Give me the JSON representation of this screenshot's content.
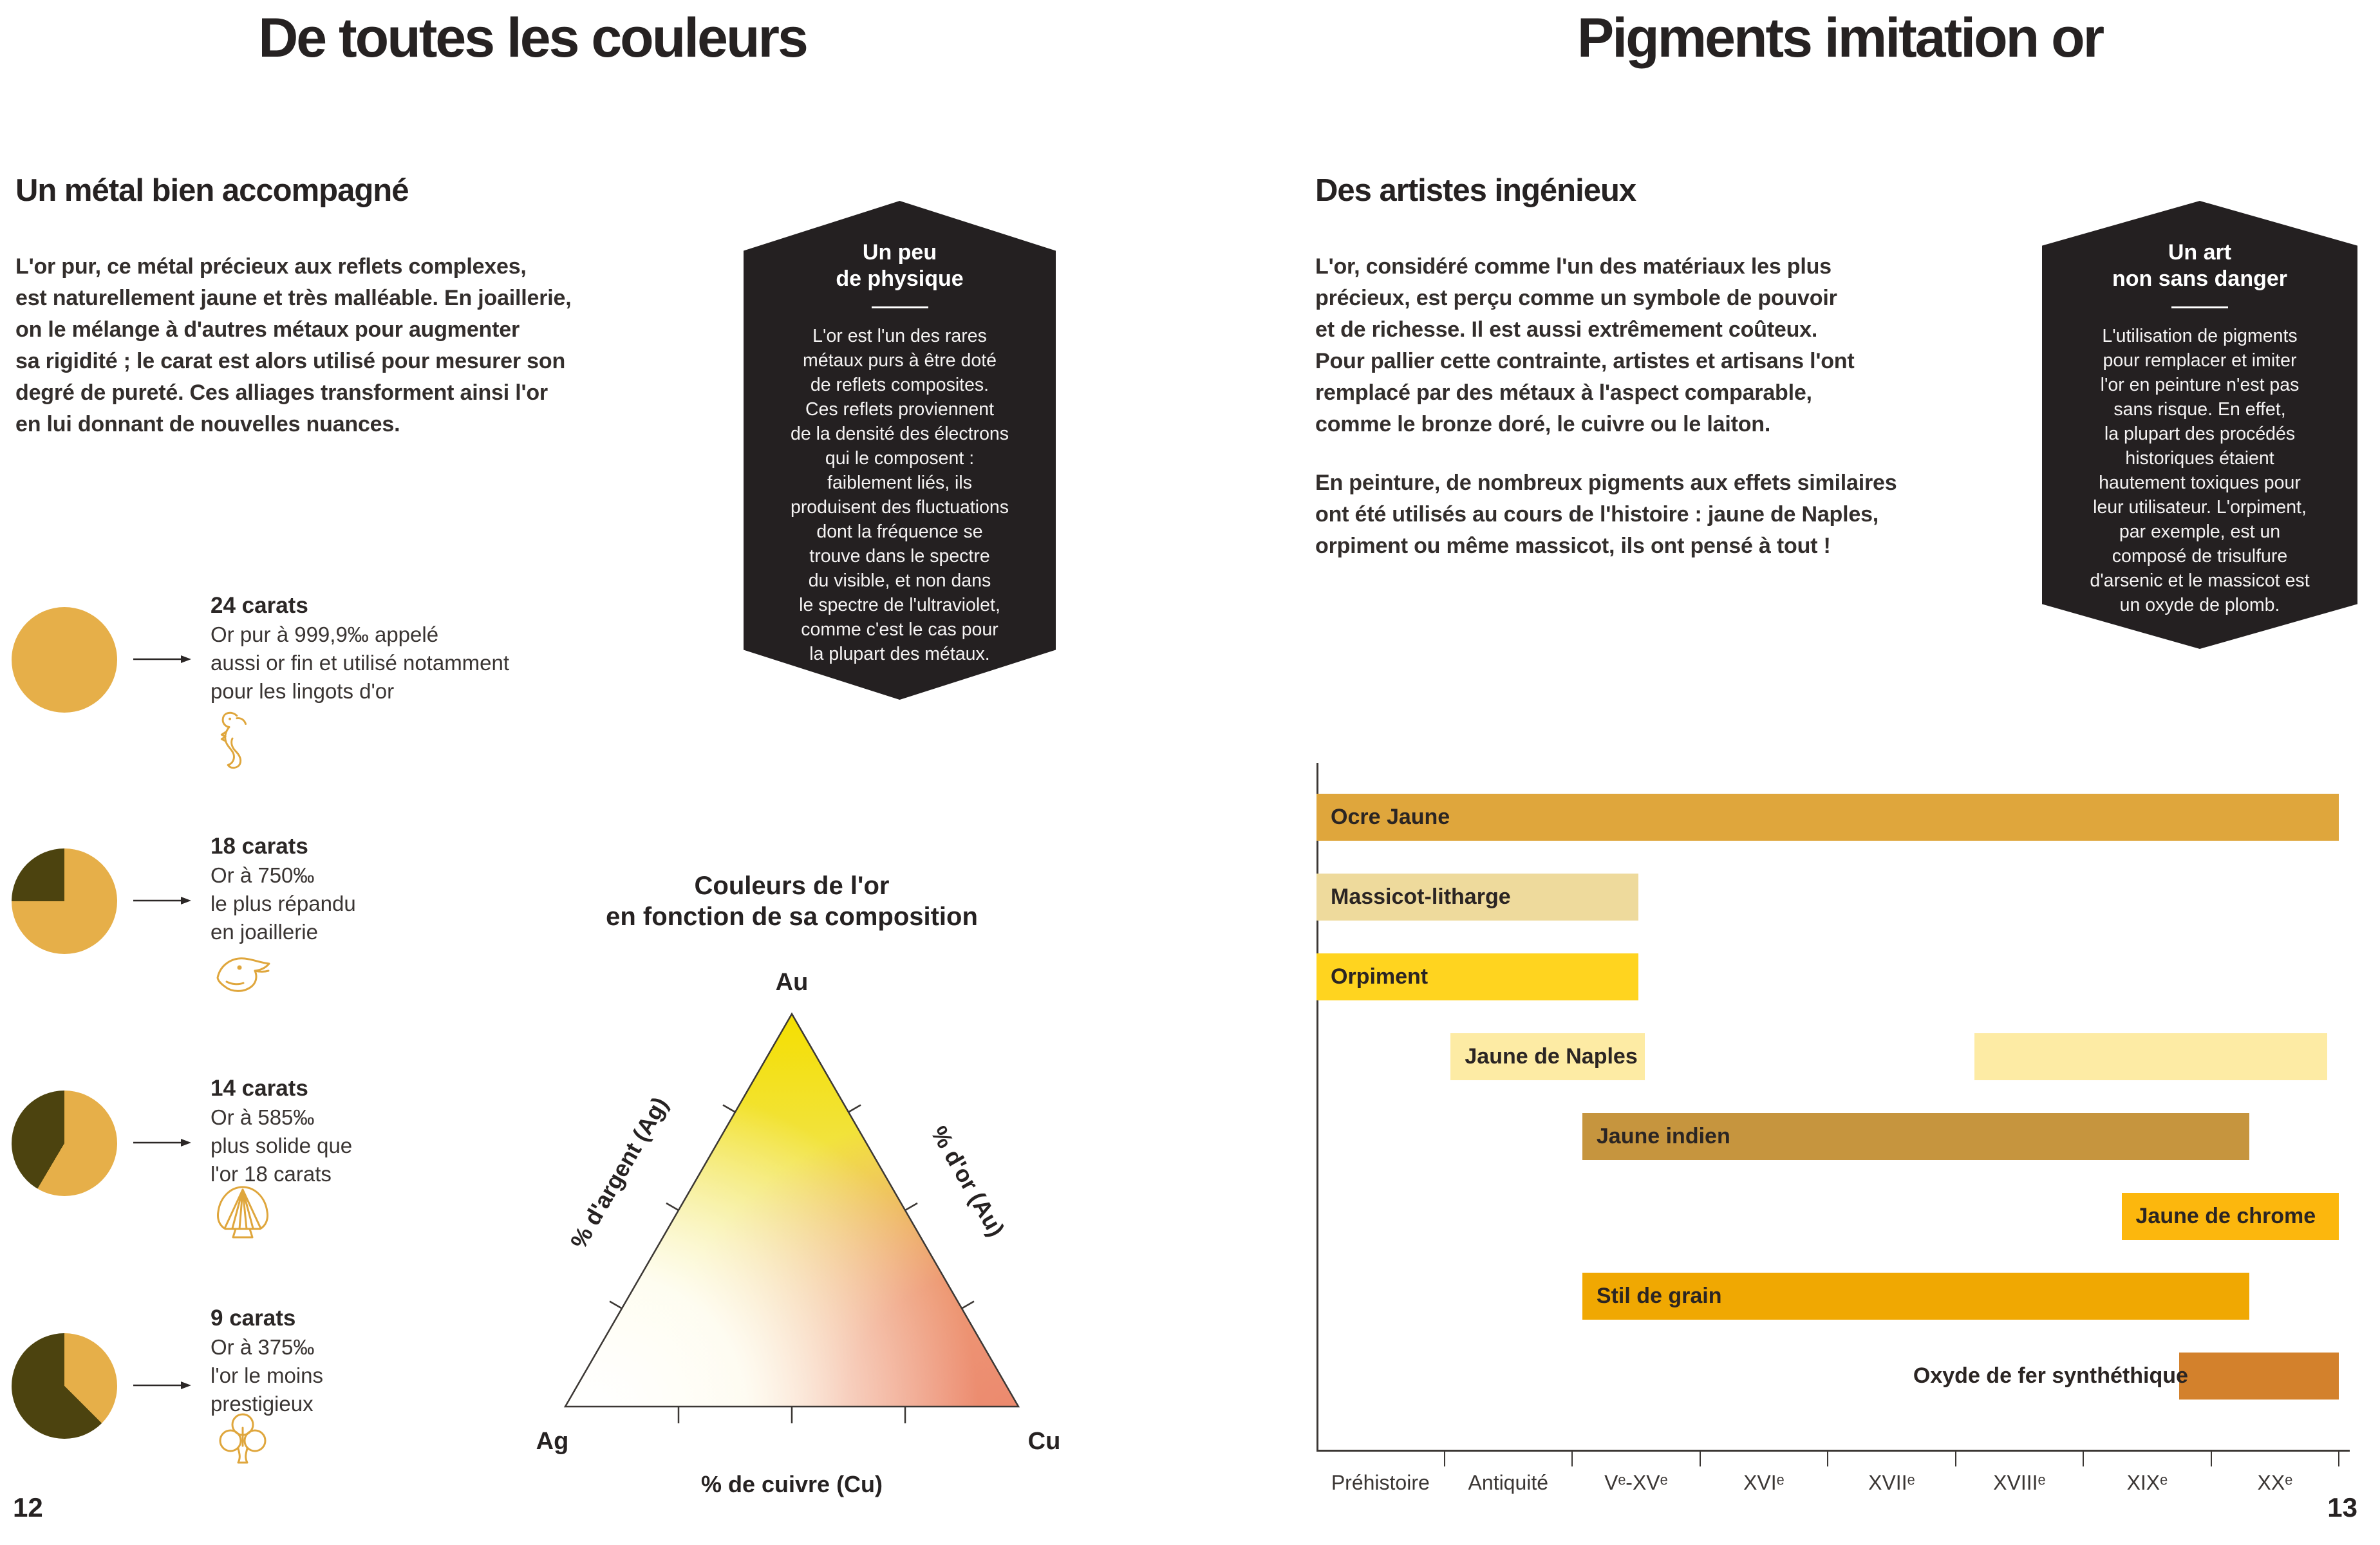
{
  "document": {
    "type": "illustrated-book-spread",
    "language": "fr",
    "topic": "l'or et ses couleurs / pigments imitation or"
  },
  "colors": {
    "pie_gold": "#E6AF49",
    "pie_alloy_dark": "#4C430F",
    "badge_background": "#242021",
    "text": "#2B2726",
    "icon_stroke": "#DFA63C"
  },
  "left_page": {
    "page_number": "12",
    "title": "De toutes les couleurs",
    "section_heading": "Un métal bien accompagné",
    "intro_lines": [
      "L'or pur, ce métal précieux aux reflets complexes,",
      "est naturellement jaune et très malléable. En joaillerie,",
      "on le mélange à d'autres métaux pour augmenter",
      "sa rigidité ; le carat est alors utilisé pour mesurer son",
      "degré de pureté. Ces alliages transforment ainsi l'or",
      "en lui donnant de nouvelles nuances."
    ],
    "physics_badge": {
      "title_lines": [
        "Un peu",
        "de physique"
      ],
      "body_lines": [
        "L'or est l'un des rares",
        "métaux purs à être doté",
        "de reflets composites.",
        "Ces reflets proviennent",
        "de la densité des électrons",
        "qui le composent :",
        "faiblement liés, ils",
        "produisent des fluctuations",
        "dont la fréquence se",
        "trouve dans le spectre",
        "du visible, et non dans",
        "le spectre de l'ultraviolet,",
        "comme c'est le cas pour",
        "la plupart des métaux."
      ]
    },
    "carats": [
      {
        "label": "24 carats",
        "desc_lines": [
          "Or pur à 999,9‰ appelé",
          "aussi or fin et utilisé notamment",
          "pour les lingots d'or"
        ],
        "gold_pct": 100,
        "icon": "seahorse-hallmark-icon"
      },
      {
        "label": "18 carats",
        "desc_lines": [
          "Or à 750‰",
          "le plus répandu",
          "en joaillerie"
        ],
        "gold_pct": 75,
        "icon": "eagle-head-hallmark-icon"
      },
      {
        "label": "14 carats",
        "desc_lines": [
          "Or à 585‰",
          "plus solide que",
          "l'or 18 carats"
        ],
        "gold_pct": 58.5,
        "icon": "shell-hallmark-icon"
      },
      {
        "label": "9 carats",
        "desc_lines": [
          "Or à 375‰",
          "l'or le moins",
          "prestigieux"
        ],
        "gold_pct": 37.5,
        "icon": "clover-hallmark-icon"
      }
    ],
    "ternary": {
      "title_lines": [
        "Couleurs de l'or",
        "en fonction de sa composition"
      ],
      "vertex_labels": {
        "top": "Au",
        "bottom_left": "Ag",
        "bottom_right": "Cu"
      },
      "axis_labels": {
        "left": "% d'argent (Ag)",
        "right": "% d'or (Au)",
        "bottom": "% de cuivre (Cu)"
      }
    }
  },
  "right_page": {
    "page_number": "13",
    "title": "Pigments imitation or",
    "section_heading": "Des artistes ingénieux",
    "para1_lines": [
      "L'or, considéré comme l'un des matériaux les plus",
      "précieux, est perçu comme un symbole de pouvoir",
      "et de richesse. Il est aussi extrêmement coûteux.",
      "Pour pallier cette contrainte, artistes et artisans l'ont",
      "remplacé par des métaux à l'aspect comparable,",
      "comme le bronze doré, le cuivre ou le laiton."
    ],
    "para2_lines": [
      "En peinture, de nombreux pigments aux effets similaires",
      "ont été utilisés au cours de l'histoire : jaune de Naples,",
      "orpiment ou même massicot, ils ont pensé à tout !"
    ],
    "danger_badge": {
      "title_lines": [
        "Un art",
        "non sans danger"
      ],
      "body_lines": [
        "L'utilisation de pigments",
        "pour remplacer et imiter",
        "l'or en peinture n'est pas",
        "sans risque. En effet,",
        "la plupart des procédés",
        "historiques étaient",
        "hautement toxiques pour",
        "leur utilisateur. L'orpiment,",
        "par exemple, est un",
        "composé de trisulfure",
        "d'arsenic et le massicot est",
        "un oxyde de plomb."
      ]
    }
  },
  "chart_data": [
    {
      "type": "bar",
      "variant": "horizontal-timeline",
      "title": "Périodes d'utilisation des pigments imitant l'or",
      "categories": [
        "Préhistoire",
        "Antiquité",
        "Vᵉ-XVᵉ",
        "XVIᵉ",
        "XVIIᵉ",
        "XVIIIᵉ",
        "XIXᵉ",
        "XXᵉ"
      ],
      "x_unit_range": [
        0,
        8
      ],
      "legend_position": "none",
      "grid": false,
      "bars": [
        {
          "label": "Ocre Jaune",
          "segments": [
            [
              0,
              8
            ]
          ],
          "color": "#DFA63C",
          "label_outside": false
        },
        {
          "label": "Massicot-litharge",
          "segments": [
            [
              0,
              2.52
            ]
          ],
          "color": "#EEDA9C",
          "label_outside": false
        },
        {
          "label": "Orpiment",
          "segments": [
            [
              0,
              2.52
            ]
          ],
          "color": "#FFD41F",
          "label_outside": false
        },
        {
          "label": "Jaune de Naples",
          "segments": [
            [
              1.05,
              2.57
            ],
            [
              5.15,
              7.91
            ]
          ],
          "color": "#FDEBA4",
          "label_outside": false
        },
        {
          "label": "Jaune indien",
          "segments": [
            [
              2.08,
              7.3
            ]
          ],
          "color": "#C6953E",
          "label_outside": false
        },
        {
          "label": "Jaune de chrome",
          "segments": [
            [
              6.3,
              8.0
            ]
          ],
          "color": "#FCB70D",
          "label_outside": false
        },
        {
          "label": "Stil de grain",
          "segments": [
            [
              2.08,
              7.3
            ]
          ],
          "color": "#F0A802",
          "label_outside": false
        },
        {
          "label": "Oxyde de fer synthéthique",
          "segments": [
            [
              6.75,
              8.0
            ]
          ],
          "color": "#D3812C",
          "label_outside": true
        }
      ]
    },
    {
      "type": "ternary",
      "title": "Couleurs de l'or en fonction de sa composition",
      "vertices": {
        "top": "Au",
        "bottom_left": "Ag",
        "bottom_right": "Cu"
      },
      "axis_labels": {
        "left_edge": "% d'argent (Ag)",
        "right_edge": "% d'or (Au)",
        "bottom_edge": "% de cuivre (Cu)"
      },
      "ticks_per_edge": 3,
      "color_field": {
        "near_Au": "#F4DF00",
        "near_Ag": "#FFFFFF",
        "near_Cu": "#EC8A6E"
      }
    },
    {
      "type": "pie",
      "title": "Proportion d'or pur selon le carat",
      "unit": "% d'or",
      "pies": [
        {
          "label": "24 carats",
          "gold_pct": 100,
          "alloy_pct": 0
        },
        {
          "label": "18 carats",
          "gold_pct": 75,
          "alloy_pct": 25
        },
        {
          "label": "14 carats",
          "gold_pct": 58.5,
          "alloy_pct": 41.5
        },
        {
          "label": "9 carats",
          "gold_pct": 37.5,
          "alloy_pct": 62.5
        }
      ]
    }
  ]
}
